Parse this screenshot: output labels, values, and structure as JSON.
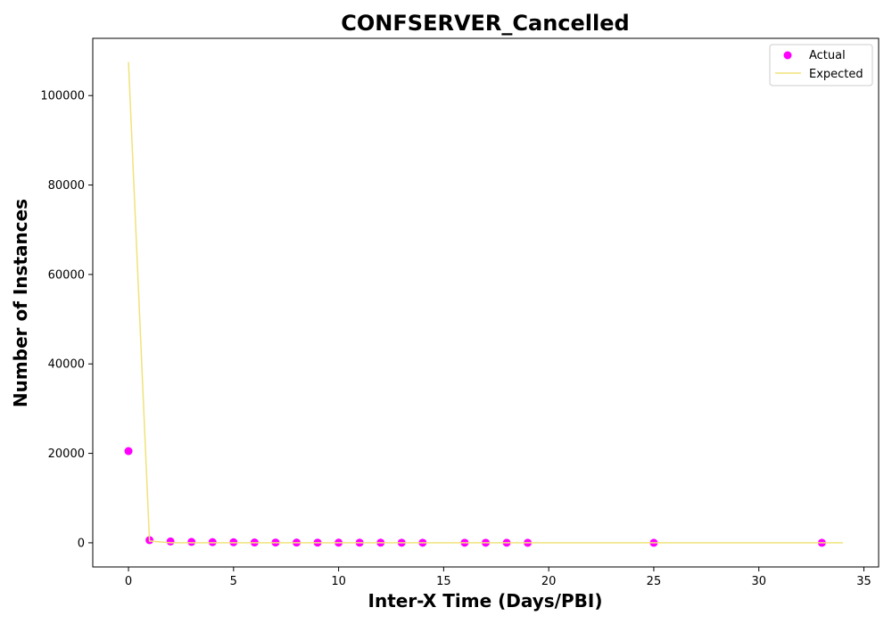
{
  "chart_data": {
    "type": "scatter",
    "title": "CONFSERVER_Cancelled",
    "xlabel": "Inter-X Time (Days/PBI)",
    "ylabel": "Number of Instances",
    "xlim": [
      -1.7,
      35.7
    ],
    "ylim": [
      -5400,
      112800
    ],
    "xticks": [
      0,
      5,
      10,
      15,
      20,
      25,
      30,
      35
    ],
    "yticks": [
      0,
      20000,
      40000,
      60000,
      80000,
      100000
    ],
    "grid": false,
    "legend_position": "top-right",
    "series": [
      {
        "name": "Actual",
        "kind": "scatter",
        "color": "#ff00ff",
        "x": [
          0,
          1,
          2,
          3,
          4,
          5,
          6,
          7,
          8,
          9,
          10,
          11,
          12,
          13,
          14,
          16,
          17,
          18,
          19,
          25,
          33
        ],
        "y": [
          20500,
          600,
          300,
          200,
          150,
          120,
          80,
          60,
          50,
          40,
          30,
          25,
          20,
          18,
          15,
          10,
          8,
          6,
          5,
          3,
          2
        ]
      },
      {
        "name": "Expected",
        "kind": "line",
        "color": "#f0e27a",
        "x": [
          0,
          1,
          2,
          3,
          4,
          5,
          6,
          7,
          8,
          9,
          10,
          11,
          12,
          13,
          14,
          15,
          16,
          17,
          18,
          19,
          20,
          21,
          22,
          23,
          24,
          25,
          26,
          27,
          28,
          29,
          30,
          31,
          32,
          33,
          34
        ],
        "y": [
          107500,
          400,
          10,
          1,
          0,
          0,
          0,
          0,
          0,
          0,
          0,
          0,
          0,
          0,
          0,
          0,
          0,
          0,
          0,
          0,
          0,
          0,
          0,
          0,
          0,
          0,
          0,
          0,
          0,
          0,
          0,
          0,
          0,
          0,
          0
        ]
      }
    ]
  }
}
